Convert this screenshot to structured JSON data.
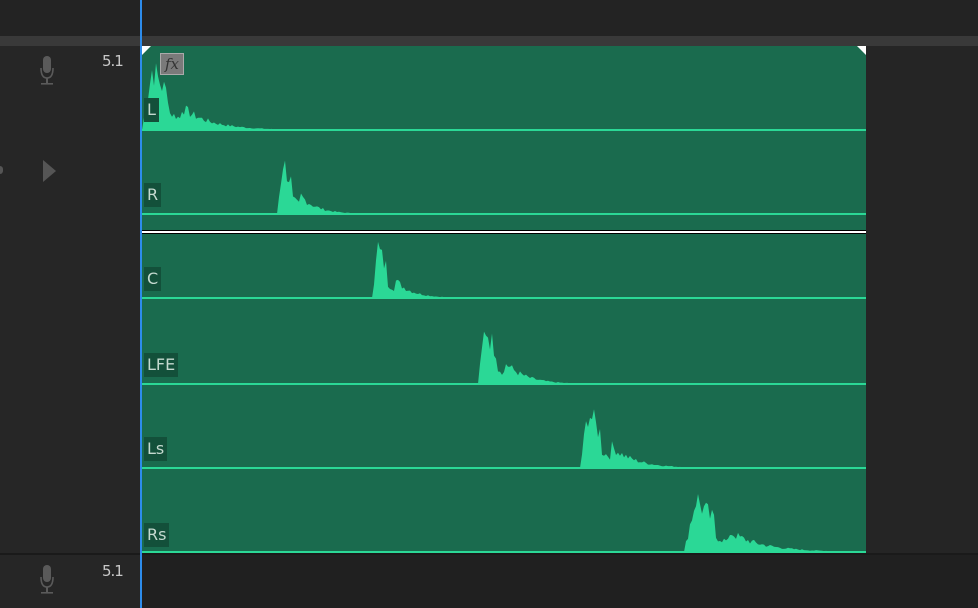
{
  "tracks": [
    {
      "format": "5.1",
      "icon": "microphone-icon"
    },
    {
      "format": "5.1",
      "icon": "microphone-icon"
    }
  ],
  "expand_icon": "triangle-right-icon",
  "clip": {
    "fx_badge": "fx",
    "channels": [
      "L",
      "R",
      "C",
      "LFE",
      "Ls",
      "Rs"
    ],
    "colors": {
      "clip": "#1a6b4e",
      "waveform": "#2bd896",
      "volume_line": "#ffffff",
      "playhead": "#2d8ceb"
    }
  }
}
